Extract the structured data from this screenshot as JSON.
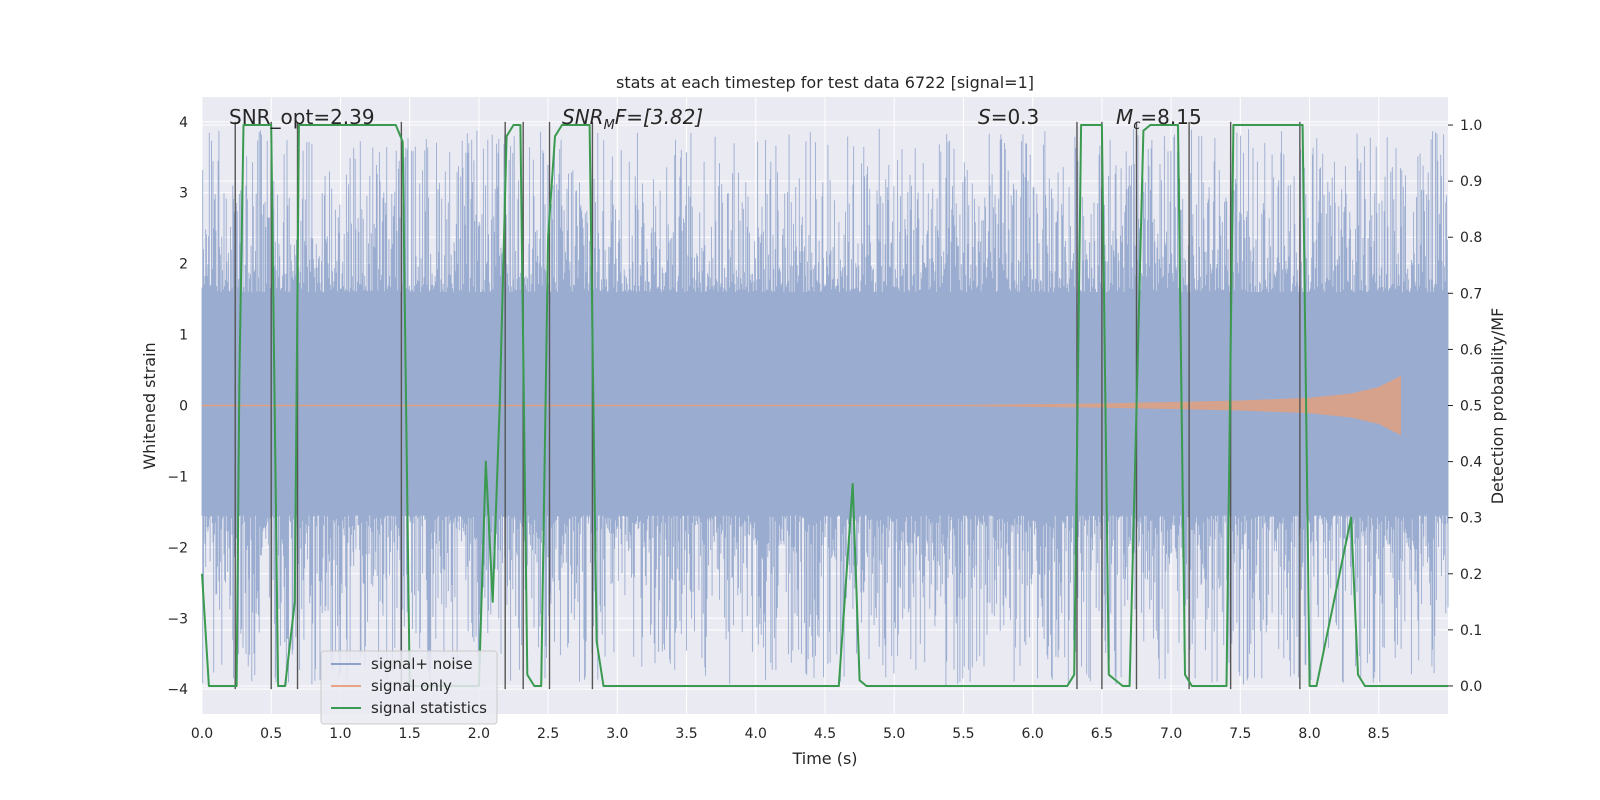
{
  "chart_data": {
    "type": "line",
    "title": "stats at each timestep for test data 6722 [signal=1]",
    "xlabel": "Time (s)",
    "ylabel": "Whitened strain",
    "y2label": "Detection probability/MF",
    "xlim": [
      0,
      9.0
    ],
    "ylim": [
      -4.35,
      4.35
    ],
    "y2lim": [
      -0.05,
      1.05
    ],
    "xticks": [
      0.0,
      0.5,
      1.0,
      1.5,
      2.0,
      2.5,
      3.0,
      3.5,
      4.0,
      4.5,
      5.0,
      5.5,
      6.0,
      6.5,
      7.0,
      7.5,
      8.0,
      8.5
    ],
    "xtick_labels": [
      "0.0",
      "0.5",
      "1.0",
      "1.5",
      "2.0",
      "2.5",
      "3.0",
      "3.5",
      "4.0",
      "4.5",
      "5.0",
      "5.5",
      "6.0",
      "6.5",
      "7.0",
      "7.5",
      "8.0",
      "8.5"
    ],
    "yticks": [
      -4,
      -3,
      -2,
      -1,
      0,
      1,
      2,
      3,
      4
    ],
    "ytick_labels": [
      "−4",
      "−3",
      "−2",
      "−1",
      "0",
      "1",
      "2",
      "3",
      "4"
    ],
    "y2ticks": [
      0.0,
      0.1,
      0.2,
      0.3,
      0.4,
      0.5,
      0.6,
      0.7,
      0.8,
      0.9,
      1.0
    ],
    "y2tick_labels": [
      "0.0",
      "0.1",
      "0.2",
      "0.3",
      "0.4",
      "0.5",
      "0.6",
      "0.7",
      "0.8",
      "0.9",
      "1.0"
    ],
    "annotations": {
      "snr_opt": "SNR_opt=2.39",
      "snr_mf_main": "SNR",
      "snr_mf_sub": "M",
      "snr_mf_rest": "F=[3.82]",
      "s_main": "S",
      "s_rest": "=0.3",
      "mc_main": "M",
      "mc_sub": "c",
      "mc_rest": "=8.15"
    },
    "legend": {
      "location": "lower-left",
      "entries": [
        {
          "label": "signal+ noise",
          "color": "#8da0cb"
        },
        {
          "label": "signal only",
          "color": "#e8a384"
        },
        {
          "label": "signal statistics",
          "color": "#3a9a4f"
        }
      ]
    },
    "series": [
      {
        "name": "signal+ noise",
        "axis": "left",
        "color": "#9aaccf",
        "band_core": [
          -1.55,
          1.6
        ],
        "spike_max": 3.9,
        "spike_min": -3.95
      },
      {
        "name": "signal only",
        "axis": "left",
        "color": "#e0a080",
        "envelope": {
          "x": [
            5.5,
            6.5,
            7.0,
            7.5,
            8.0,
            8.3,
            8.5,
            8.66
          ],
          "amp": [
            0.01,
            0.03,
            0.05,
            0.07,
            0.11,
            0.17,
            0.26,
            0.42
          ]
        }
      },
      {
        "name": "signal statistics",
        "axis": "right",
        "color": "#3a9a4f",
        "x": [
          0.0,
          0.05,
          0.25,
          0.27,
          0.3,
          0.5,
          0.55,
          0.6,
          0.67,
          0.7,
          0.75,
          1.0,
          1.4,
          1.45,
          1.5,
          2.0,
          2.05,
          2.1,
          2.15,
          2.2,
          2.25,
          2.3,
          2.35,
          2.4,
          2.45,
          2.5,
          2.55,
          2.6,
          2.65,
          2.8,
          2.85,
          2.9,
          3.0,
          4.4,
          4.6,
          4.7,
          4.75,
          4.8,
          5.0,
          5.5,
          6.25,
          6.3,
          6.35,
          6.5,
          6.55,
          6.65,
          6.7,
          6.8,
          6.85,
          7.05,
          7.1,
          7.15,
          7.2,
          7.35,
          7.4,
          7.45,
          7.5,
          7.95,
          8.0,
          8.05,
          8.3,
          8.35,
          8.4,
          8.45,
          9.0
        ],
        "y": [
          0.2,
          0.0,
          0.0,
          0.55,
          1.0,
          1.0,
          0.0,
          0.0,
          0.15,
          1.0,
          1.0,
          1.0,
          1.0,
          0.97,
          0.0,
          0.0,
          0.4,
          0.15,
          0.5,
          0.98,
          1.0,
          1.0,
          0.02,
          0.0,
          0.0,
          0.8,
          0.98,
          1.0,
          1.0,
          1.0,
          0.08,
          0.0,
          0.0,
          0.0,
          0.0,
          0.36,
          0.01,
          0.0,
          0.0,
          0.0,
          0.0,
          0.02,
          1.0,
          1.0,
          0.02,
          0.0,
          0.0,
          0.99,
          1.0,
          1.0,
          0.02,
          0.0,
          0.0,
          0.0,
          0.0,
          1.0,
          1.0,
          1.0,
          0.0,
          0.0,
          0.3,
          0.02,
          0.0,
          0.0,
          0.0
        ]
      }
    ],
    "vertical_lines_x": [
      0.24,
      0.5,
      0.69,
      1.44,
      2.19,
      2.32,
      2.51,
      2.82,
      6.32,
      6.5,
      6.75,
      7.13,
      7.43,
      7.93
    ]
  }
}
